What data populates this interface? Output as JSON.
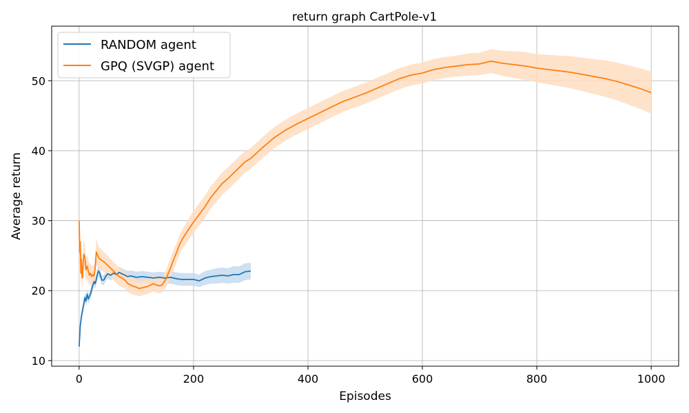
{
  "chart_data": {
    "type": "line",
    "title": "return graph CartPole-v1",
    "xlabel": "Episodes",
    "ylabel": "Average return",
    "xlim": [
      -48,
      1048
    ],
    "ylim": [
      9.2,
      57.8
    ],
    "xticks": [
      0,
      200,
      400,
      600,
      800,
      1000
    ],
    "yticks": [
      10,
      20,
      30,
      40,
      50
    ],
    "xtick_labels": [
      "0",
      "200",
      "400",
      "600",
      "800",
      "1000"
    ],
    "ytick_labels": [
      "10",
      "20",
      "30",
      "40",
      "50"
    ],
    "grid": true,
    "legend_position": "top-left",
    "series": [
      {
        "name": "RANDOM agent",
        "color": "#1f77b4",
        "band_color": "#c6dbef",
        "x": [
          0,
          2,
          4,
          6,
          8,
          10,
          12,
          14,
          16,
          18,
          20,
          22,
          24,
          26,
          28,
          30,
          32,
          34,
          36,
          38,
          40,
          42,
          44,
          46,
          50,
          55,
          60,
          65,
          70,
          75,
          80,
          85,
          90,
          95,
          100,
          110,
          120,
          130,
          140,
          150,
          160,
          170,
          180,
          190,
          200,
          210,
          220,
          230,
          240,
          250,
          260,
          270,
          280,
          290,
          300
        ],
        "mean": [
          12.0,
          15.0,
          16.3,
          17.2,
          18.0,
          19.0,
          18.5,
          19.5,
          18.8,
          19.2,
          19.5,
          20.2,
          20.8,
          21.3,
          21.0,
          21.6,
          22.4,
          22.8,
          22.5,
          21.9,
          21.5,
          21.5,
          21.6,
          22.0,
          22.4,
          22.2,
          22.5,
          22.3,
          22.6,
          22.4,
          22.2,
          22.0,
          22.1,
          22.0,
          21.9,
          22.0,
          21.9,
          21.8,
          21.9,
          21.8,
          21.9,
          21.7,
          21.6,
          21.6,
          21.6,
          21.4,
          21.8,
          22.0,
          22.1,
          22.2,
          22.1,
          22.3,
          22.3,
          22.7,
          22.8
        ],
        "lower": [
          11.5,
          14.3,
          15.6,
          16.5,
          17.3,
          18.3,
          17.8,
          18.8,
          18.1,
          18.5,
          18.8,
          19.5,
          20.1,
          20.6,
          20.3,
          20.9,
          21.6,
          22.0,
          21.7,
          21.1,
          20.8,
          20.8,
          20.9,
          21.3,
          21.7,
          21.5,
          21.8,
          21.6,
          21.8,
          21.6,
          21.4,
          21.2,
          21.3,
          21.2,
          21.1,
          21.2,
          21.1,
          21.0,
          21.1,
          21.0,
          21.0,
          20.8,
          20.7,
          20.7,
          20.7,
          20.5,
          20.8,
          21.0,
          21.0,
          21.1,
          21.0,
          21.1,
          21.1,
          21.5,
          21.6
        ],
        "upper": [
          12.5,
          15.7,
          17.0,
          17.9,
          18.7,
          19.7,
          19.2,
          20.2,
          19.5,
          19.9,
          20.2,
          20.9,
          21.5,
          22.0,
          21.7,
          22.3,
          23.2,
          23.6,
          23.3,
          22.7,
          22.2,
          22.2,
          22.3,
          22.7,
          23.1,
          22.9,
          23.2,
          23.0,
          23.4,
          23.2,
          23.0,
          22.8,
          22.9,
          22.8,
          22.7,
          22.8,
          22.7,
          22.6,
          22.7,
          22.6,
          22.8,
          22.6,
          22.5,
          22.5,
          22.5,
          22.3,
          22.8,
          23.0,
          23.2,
          23.3,
          23.2,
          23.5,
          23.5,
          23.9,
          24.0
        ]
      },
      {
        "name": "GPQ (SVGP) agent",
        "color": "#ff7f0e",
        "band_color": "#ffddc1",
        "x": [
          0,
          1,
          2,
          3,
          4,
          5,
          6,
          7,
          8,
          10,
          12,
          14,
          16,
          18,
          20,
          22,
          24,
          26,
          28,
          30,
          35,
          40,
          45,
          50,
          55,
          60,
          65,
          70,
          75,
          80,
          85,
          90,
          95,
          100,
          105,
          110,
          115,
          120,
          125,
          130,
          135,
          140,
          145,
          150,
          155,
          160,
          165,
          170,
          175,
          180,
          190,
          200,
          210,
          220,
          230,
          240,
          250,
          260,
          270,
          280,
          290,
          300,
          320,
          340,
          360,
          380,
          400,
          420,
          440,
          460,
          480,
          500,
          520,
          540,
          560,
          580,
          600,
          620,
          640,
          660,
          680,
          700,
          720,
          740,
          760,
          780,
          800,
          820,
          840,
          860,
          880,
          900,
          920,
          940,
          960,
          980,
          1000
        ],
        "mean": [
          30.0,
          25.5,
          27.0,
          22.5,
          24.5,
          22.0,
          21.8,
          24.0,
          25.2,
          24.8,
          23.0,
          23.5,
          22.8,
          22.2,
          22.5,
          22.0,
          22.3,
          22.1,
          23.2,
          25.5,
          24.6,
          24.3,
          24.0,
          23.6,
          23.2,
          22.8,
          22.4,
          22.0,
          21.8,
          21.5,
          21.0,
          20.8,
          20.6,
          20.5,
          20.3,
          20.4,
          20.5,
          20.6,
          20.8,
          21.0,
          20.8,
          20.7,
          20.8,
          21.4,
          22.3,
          23.3,
          24.4,
          25.4,
          26.5,
          27.3,
          28.6,
          29.8,
          30.9,
          32.0,
          33.3,
          34.3,
          35.3,
          36.0,
          36.8,
          37.6,
          38.4,
          38.9,
          40.4,
          41.8,
          42.9,
          43.8,
          44.6,
          45.4,
          46.2,
          47.0,
          47.6,
          48.2,
          48.9,
          49.6,
          50.3,
          50.8,
          51.1,
          51.6,
          51.9,
          52.1,
          52.3,
          52.4,
          52.8,
          52.5,
          52.3,
          52.1,
          51.8,
          51.6,
          51.4,
          51.2,
          50.9,
          50.6,
          50.3,
          49.9,
          49.4,
          48.9,
          48.3
        ],
        "lower": [
          30.0,
          23.5,
          25.0,
          20.5,
          22.5,
          20.5,
          20.3,
          22.0,
          23.2,
          22.8,
          21.3,
          21.8,
          21.2,
          20.7,
          21.0,
          20.6,
          20.9,
          20.7,
          21.6,
          23.7,
          23.0,
          22.8,
          22.6,
          22.2,
          21.9,
          21.5,
          21.1,
          20.7,
          20.5,
          20.3,
          19.8,
          19.6,
          19.4,
          19.3,
          19.2,
          19.3,
          19.4,
          19.5,
          19.7,
          19.9,
          19.7,
          19.6,
          19.7,
          20.2,
          21.0,
          21.9,
          23.0,
          24.0,
          25.1,
          25.9,
          27.1,
          28.2,
          29.3,
          30.4,
          31.7,
          32.7,
          33.7,
          34.4,
          35.2,
          36.0,
          36.9,
          37.4,
          38.9,
          40.3,
          41.4,
          42.3,
          43.1,
          43.9,
          44.7,
          45.5,
          46.1,
          46.7,
          47.4,
          48.1,
          48.8,
          49.3,
          49.6,
          50.1,
          50.4,
          50.6,
          50.7,
          50.8,
          51.1,
          50.7,
          50.4,
          50.1,
          49.8,
          49.5,
          49.2,
          48.9,
          48.5,
          48.1,
          47.7,
          47.2,
          46.6,
          46.0,
          45.3
        ],
        "upper": [
          30.0,
          27.5,
          29.0,
          24.5,
          26.5,
          23.5,
          23.3,
          26.0,
          27.2,
          26.8,
          24.7,
          25.2,
          24.4,
          23.7,
          24.0,
          23.4,
          23.7,
          23.5,
          24.8,
          27.3,
          26.2,
          25.8,
          25.4,
          25.0,
          24.5,
          24.1,
          23.7,
          23.3,
          23.1,
          22.7,
          22.2,
          22.0,
          21.8,
          21.7,
          21.4,
          21.5,
          21.6,
          21.7,
          21.9,
          22.1,
          21.9,
          21.8,
          21.9,
          22.6,
          23.6,
          24.7,
          25.8,
          26.8,
          27.9,
          28.7,
          30.1,
          31.4,
          32.5,
          33.6,
          34.9,
          35.9,
          36.9,
          37.6,
          38.4,
          39.2,
          39.9,
          40.4,
          41.9,
          43.3,
          44.4,
          45.3,
          46.1,
          46.9,
          47.7,
          48.5,
          49.1,
          49.7,
          50.4,
          51.1,
          51.8,
          52.3,
          52.6,
          53.1,
          53.4,
          53.6,
          53.9,
          54.0,
          54.5,
          54.3,
          54.2,
          54.1,
          53.8,
          53.7,
          53.6,
          53.5,
          53.3,
          53.1,
          52.9,
          52.6,
          52.2,
          51.8,
          51.3
        ]
      }
    ]
  }
}
